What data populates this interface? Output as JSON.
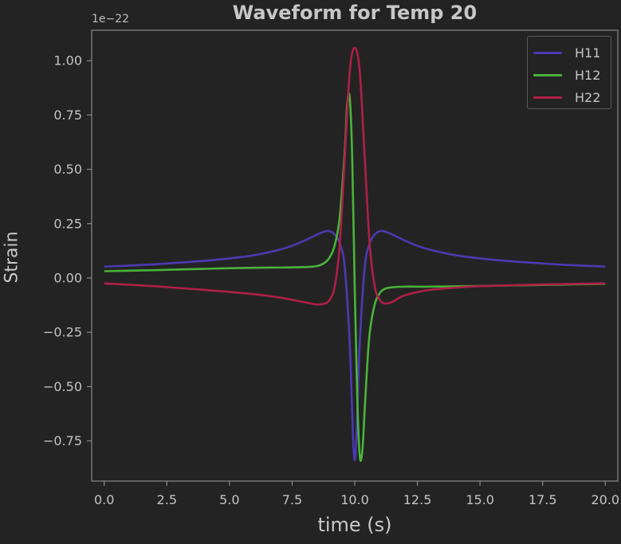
{
  "chart_data": {
    "type": "line",
    "title": "Waveform for Temp 20",
    "xlabel": "time (s)",
    "ylabel": "Strain",
    "y_offset_label": "1e−22",
    "xlim": [
      -0.5,
      20.5
    ],
    "ylim": [
      -0.935,
      1.14
    ],
    "x_ticks": [
      0.0,
      2.5,
      5.0,
      7.5,
      10.0,
      12.5,
      15.0,
      17.5,
      20.0
    ],
    "x_tick_labels": [
      "0.0",
      "2.5",
      "5.0",
      "7.5",
      "10.0",
      "12.5",
      "15.0",
      "17.5",
      "20.0"
    ],
    "y_ticks": [
      -0.75,
      -0.5,
      -0.25,
      0.0,
      0.25,
      0.5,
      0.75,
      1.0
    ],
    "y_tick_labels": [
      "−0.75",
      "−0.50",
      "−0.25",
      "0.00",
      "0.25",
      "0.50",
      "0.75",
      "1.00"
    ],
    "grid": false,
    "legend_position": "top-right",
    "background": "#232323",
    "axis_color": "#8a8a8a",
    "series": [
      {
        "name": "H11",
        "color": "#4b3ab0",
        "x": [
          0.0,
          2.0,
          4.0,
          5.0,
          6.0,
          7.0,
          7.5,
          8.0,
          8.5,
          8.8,
          9.0,
          9.2,
          9.4,
          9.6,
          9.8,
          10.0,
          10.2,
          10.4,
          10.6,
          10.8,
          11.0,
          11.2,
          11.5,
          12.0,
          12.5,
          13.0,
          14.0,
          15.0,
          16.0,
          18.0,
          20.0
        ],
        "y": [
          0.052,
          0.063,
          0.079,
          0.09,
          0.105,
          0.13,
          0.148,
          0.172,
          0.2,
          0.214,
          0.215,
          0.2,
          0.16,
          0.05,
          -0.3,
          -0.84,
          -0.3,
          0.05,
          0.16,
          0.2,
          0.215,
          0.214,
          0.2,
          0.172,
          0.148,
          0.13,
          0.105,
          0.09,
          0.079,
          0.063,
          0.052
        ]
      },
      {
        "name": "H12",
        "color": "#49b43a",
        "x": [
          0.0,
          2.0,
          4.0,
          6.0,
          7.0,
          8.0,
          8.5,
          8.8,
          9.0,
          9.2,
          9.4,
          9.6,
          9.7,
          9.8,
          9.9,
          10.0,
          10.1,
          10.2,
          10.3,
          10.4,
          10.5,
          10.6,
          10.8,
          11.0,
          11.2,
          11.5,
          12.0,
          13.0,
          15.0,
          17.5,
          20.0
        ],
        "y": [
          0.031,
          0.036,
          0.042,
          0.047,
          0.048,
          0.05,
          0.055,
          0.07,
          0.095,
          0.15,
          0.28,
          0.58,
          0.8,
          0.83,
          0.55,
          -0.05,
          -0.55,
          -0.82,
          -0.8,
          -0.6,
          -0.4,
          -0.25,
          -0.12,
          -0.07,
          -0.05,
          -0.043,
          -0.04,
          -0.04,
          -0.037,
          -0.032,
          -0.027
        ]
      },
      {
        "name": "H22",
        "color": "#ae1f48",
        "x": [
          0.0,
          2.0,
          4.0,
          6.0,
          7.0,
          8.0,
          8.5,
          8.8,
          9.0,
          9.2,
          9.4,
          9.6,
          9.8,
          10.0,
          10.2,
          10.4,
          10.6,
          10.8,
          11.0,
          11.2,
          11.5,
          11.8,
          12.0,
          12.5,
          13.0,
          14.0,
          15.0,
          17.5,
          20.0
        ],
        "y": [
          -0.025,
          -0.038,
          -0.055,
          -0.075,
          -0.09,
          -0.112,
          -0.122,
          -0.118,
          -0.1,
          -0.04,
          0.15,
          0.55,
          0.95,
          1.06,
          0.95,
          0.55,
          0.15,
          -0.04,
          -0.1,
          -0.118,
          -0.11,
          -0.09,
          -0.08,
          -0.065,
          -0.055,
          -0.045,
          -0.038,
          -0.03,
          -0.025
        ]
      }
    ]
  }
}
